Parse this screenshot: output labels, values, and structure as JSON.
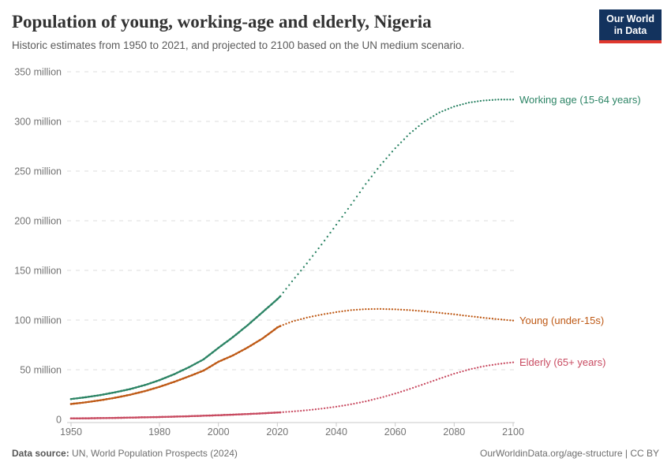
{
  "header": {
    "title": "Population of young, working-age and elderly, Nigeria",
    "subtitle": "Historic estimates from 1950 to 2021, and projected to 2100 based on the UN medium scenario."
  },
  "logo": {
    "line1": "Our World",
    "line2": "in Data",
    "bg_color": "#13335e",
    "accent_color": "#e0382e"
  },
  "chart_data": {
    "type": "line",
    "title": "Population of young, working-age and elderly, Nigeria",
    "xlabel": "",
    "ylabel": "",
    "xlim": [
      1950,
      2100
    ],
    "ylim": [
      0,
      350
    ],
    "grid": true,
    "legend_position": "right-end-labels",
    "historic_until": 2021,
    "projection_note": "dotted after 2021 (UN medium scenario)",
    "x_ticks": [
      1950,
      1980,
      2000,
      2020,
      2040,
      2060,
      2080,
      2100
    ],
    "y_ticks": [
      {
        "value": 0,
        "label": "0"
      },
      {
        "value": 50,
        "label": "50 million"
      },
      {
        "value": 100,
        "label": "100 million"
      },
      {
        "value": 150,
        "label": "150 million"
      },
      {
        "value": 200,
        "label": "200 million"
      },
      {
        "value": 250,
        "label": "250 million"
      },
      {
        "value": 300,
        "label": "300 million"
      },
      {
        "value": 350,
        "label": "350 million"
      }
    ],
    "x": [
      1950,
      1955,
      1960,
      1965,
      1970,
      1975,
      1980,
      1985,
      1990,
      1995,
      2000,
      2005,
      2010,
      2015,
      2020,
      2021,
      2025,
      2030,
      2035,
      2040,
      2045,
      2050,
      2055,
      2060,
      2065,
      2070,
      2075,
      2080,
      2085,
      2090,
      2095,
      2100
    ],
    "unit": "million people",
    "series": [
      {
        "name": "Working age (15-64 years)",
        "color": "#2c8465",
        "values": [
          20.5,
          22.3,
          24.5,
          27.3,
          30.5,
          34.5,
          39.5,
          45.5,
          52.5,
          60.5,
          72,
          83,
          95,
          108,
          121,
          124,
          139,
          157,
          176,
          196,
          216,
          237,
          256,
          273,
          288,
          300,
          309,
          315,
          319,
          321,
          322,
          322
        ]
      },
      {
        "name": "Young (under-15s)",
        "color": "#be5915",
        "values": [
          15.5,
          17.2,
          19.3,
          21.8,
          24.8,
          28.4,
          32.8,
          37.8,
          43.3,
          49.2,
          58,
          64.5,
          72.5,
          81.5,
          92.5,
          94,
          98.5,
          102.5,
          105.5,
          108,
          110,
          111,
          111.2,
          110.8,
          110,
          108.8,
          107.3,
          105.8,
          104,
          102.3,
          100.8,
          99.5
        ]
      },
      {
        "name": "Elderly (65+ years)",
        "color": "#c84b61",
        "values": [
          1.0,
          1.1,
          1.3,
          1.5,
          1.8,
          2.1,
          2.4,
          2.8,
          3.2,
          3.7,
          4.2,
          4.8,
          5.4,
          6.1,
          6.9,
          7.1,
          7.9,
          9.2,
          10.8,
          12.8,
          15.2,
          18.2,
          21.8,
          26,
          30.7,
          35.8,
          41,
          46,
          50.2,
          53.5,
          55.8,
          57.5
        ]
      }
    ]
  },
  "footer": {
    "source_label": "Data source:",
    "source_text": " UN, World Population Prospects (2024)",
    "credit": "OurWorldinData.org/age-structure | CC BY"
  }
}
